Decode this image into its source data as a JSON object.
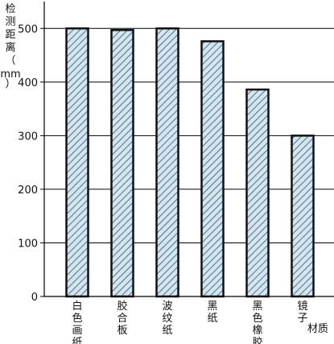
{
  "chart_data": {
    "type": "bar",
    "categories": [
      "白色画纸",
      "胶合板",
      "波纹纸",
      "黑纸",
      "黑色橡胶",
      "镜子"
    ],
    "values": [
      500,
      497,
      500,
      476,
      386,
      300
    ],
    "ylabel": "检测距离（mm）",
    "xlabel": "材质",
    "ylim": [
      0,
      550
    ],
    "yticks": [
      0,
      100,
      200,
      300,
      400,
      500
    ],
    "grid": true,
    "colors": {
      "bar_fill": "#cfe7f5",
      "bar_hatch": "#4a4a4a",
      "bar_stroke": "#111111",
      "grid": "#000000"
    }
  }
}
